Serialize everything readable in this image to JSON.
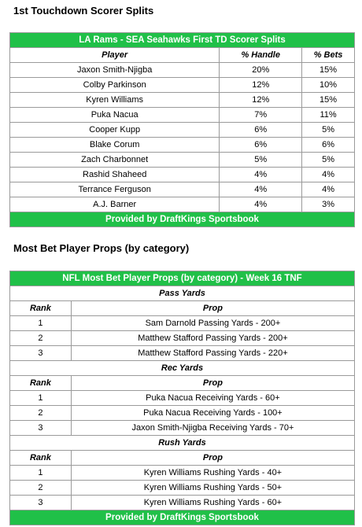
{
  "section1": {
    "title": "1st Touchdown Scorer Splits",
    "table_title": "LA Rams - SEA Seahawks First TD Scorer Splits",
    "headers": [
      "Player",
      "% Handle",
      "% Bets"
    ],
    "rows": [
      [
        "Jaxon Smith-Njigba",
        "20%",
        "15%"
      ],
      [
        "Colby Parkinson",
        "12%",
        "10%"
      ],
      [
        "Kyren Williams",
        "12%",
        "15%"
      ],
      [
        "Puka Nacua",
        "7%",
        "11%"
      ],
      [
        "Cooper Kupp",
        "6%",
        "5%"
      ],
      [
        "Blake Corum",
        "6%",
        "6%"
      ],
      [
        "Zach Charbonnet",
        "5%",
        "5%"
      ],
      [
        "Rashid Shaheed",
        "4%",
        "4%"
      ],
      [
        "Terrance Ferguson",
        "4%",
        "4%"
      ],
      [
        "A.J. Barner",
        "4%",
        "3%"
      ]
    ],
    "footer": "Provided by DraftKings Sportsbook"
  },
  "section2": {
    "title": "Most Bet Player Props (by category)",
    "table_title": "NFL Most Bet Player Props (by category) - Week 16 TNF",
    "headers": [
      "Rank",
      "Prop"
    ],
    "categories": [
      {
        "name": "Pass Yards",
        "rows": [
          [
            "1",
            "Sam Darnold Passing Yards - 200+"
          ],
          [
            "2",
            "Matthew Stafford Passing Yards - 200+"
          ],
          [
            "3",
            "Matthew Stafford Passing Yards - 220+"
          ]
        ]
      },
      {
        "name": "Rec Yards",
        "rows": [
          [
            "1",
            "Puka Nacua Receiving Yards - 60+"
          ],
          [
            "2",
            "Puka Nacua Receiving Yards - 100+"
          ],
          [
            "3",
            "Jaxon Smith-Njigba Receiving Yards - 70+"
          ]
        ]
      },
      {
        "name": "Rush Yards",
        "rows": [
          [
            "1",
            "Kyren Williams Rushing Yards - 40+"
          ],
          [
            "2",
            "Kyren Williams Rushing Yards - 50+"
          ],
          [
            "3",
            "Kyren Williams Rushing Yards - 60+"
          ]
        ]
      }
    ],
    "footer": "Provided by DraftKings Sportsbook"
  },
  "colors": {
    "header_green": "#20c048",
    "border": "#9a9a9a"
  }
}
